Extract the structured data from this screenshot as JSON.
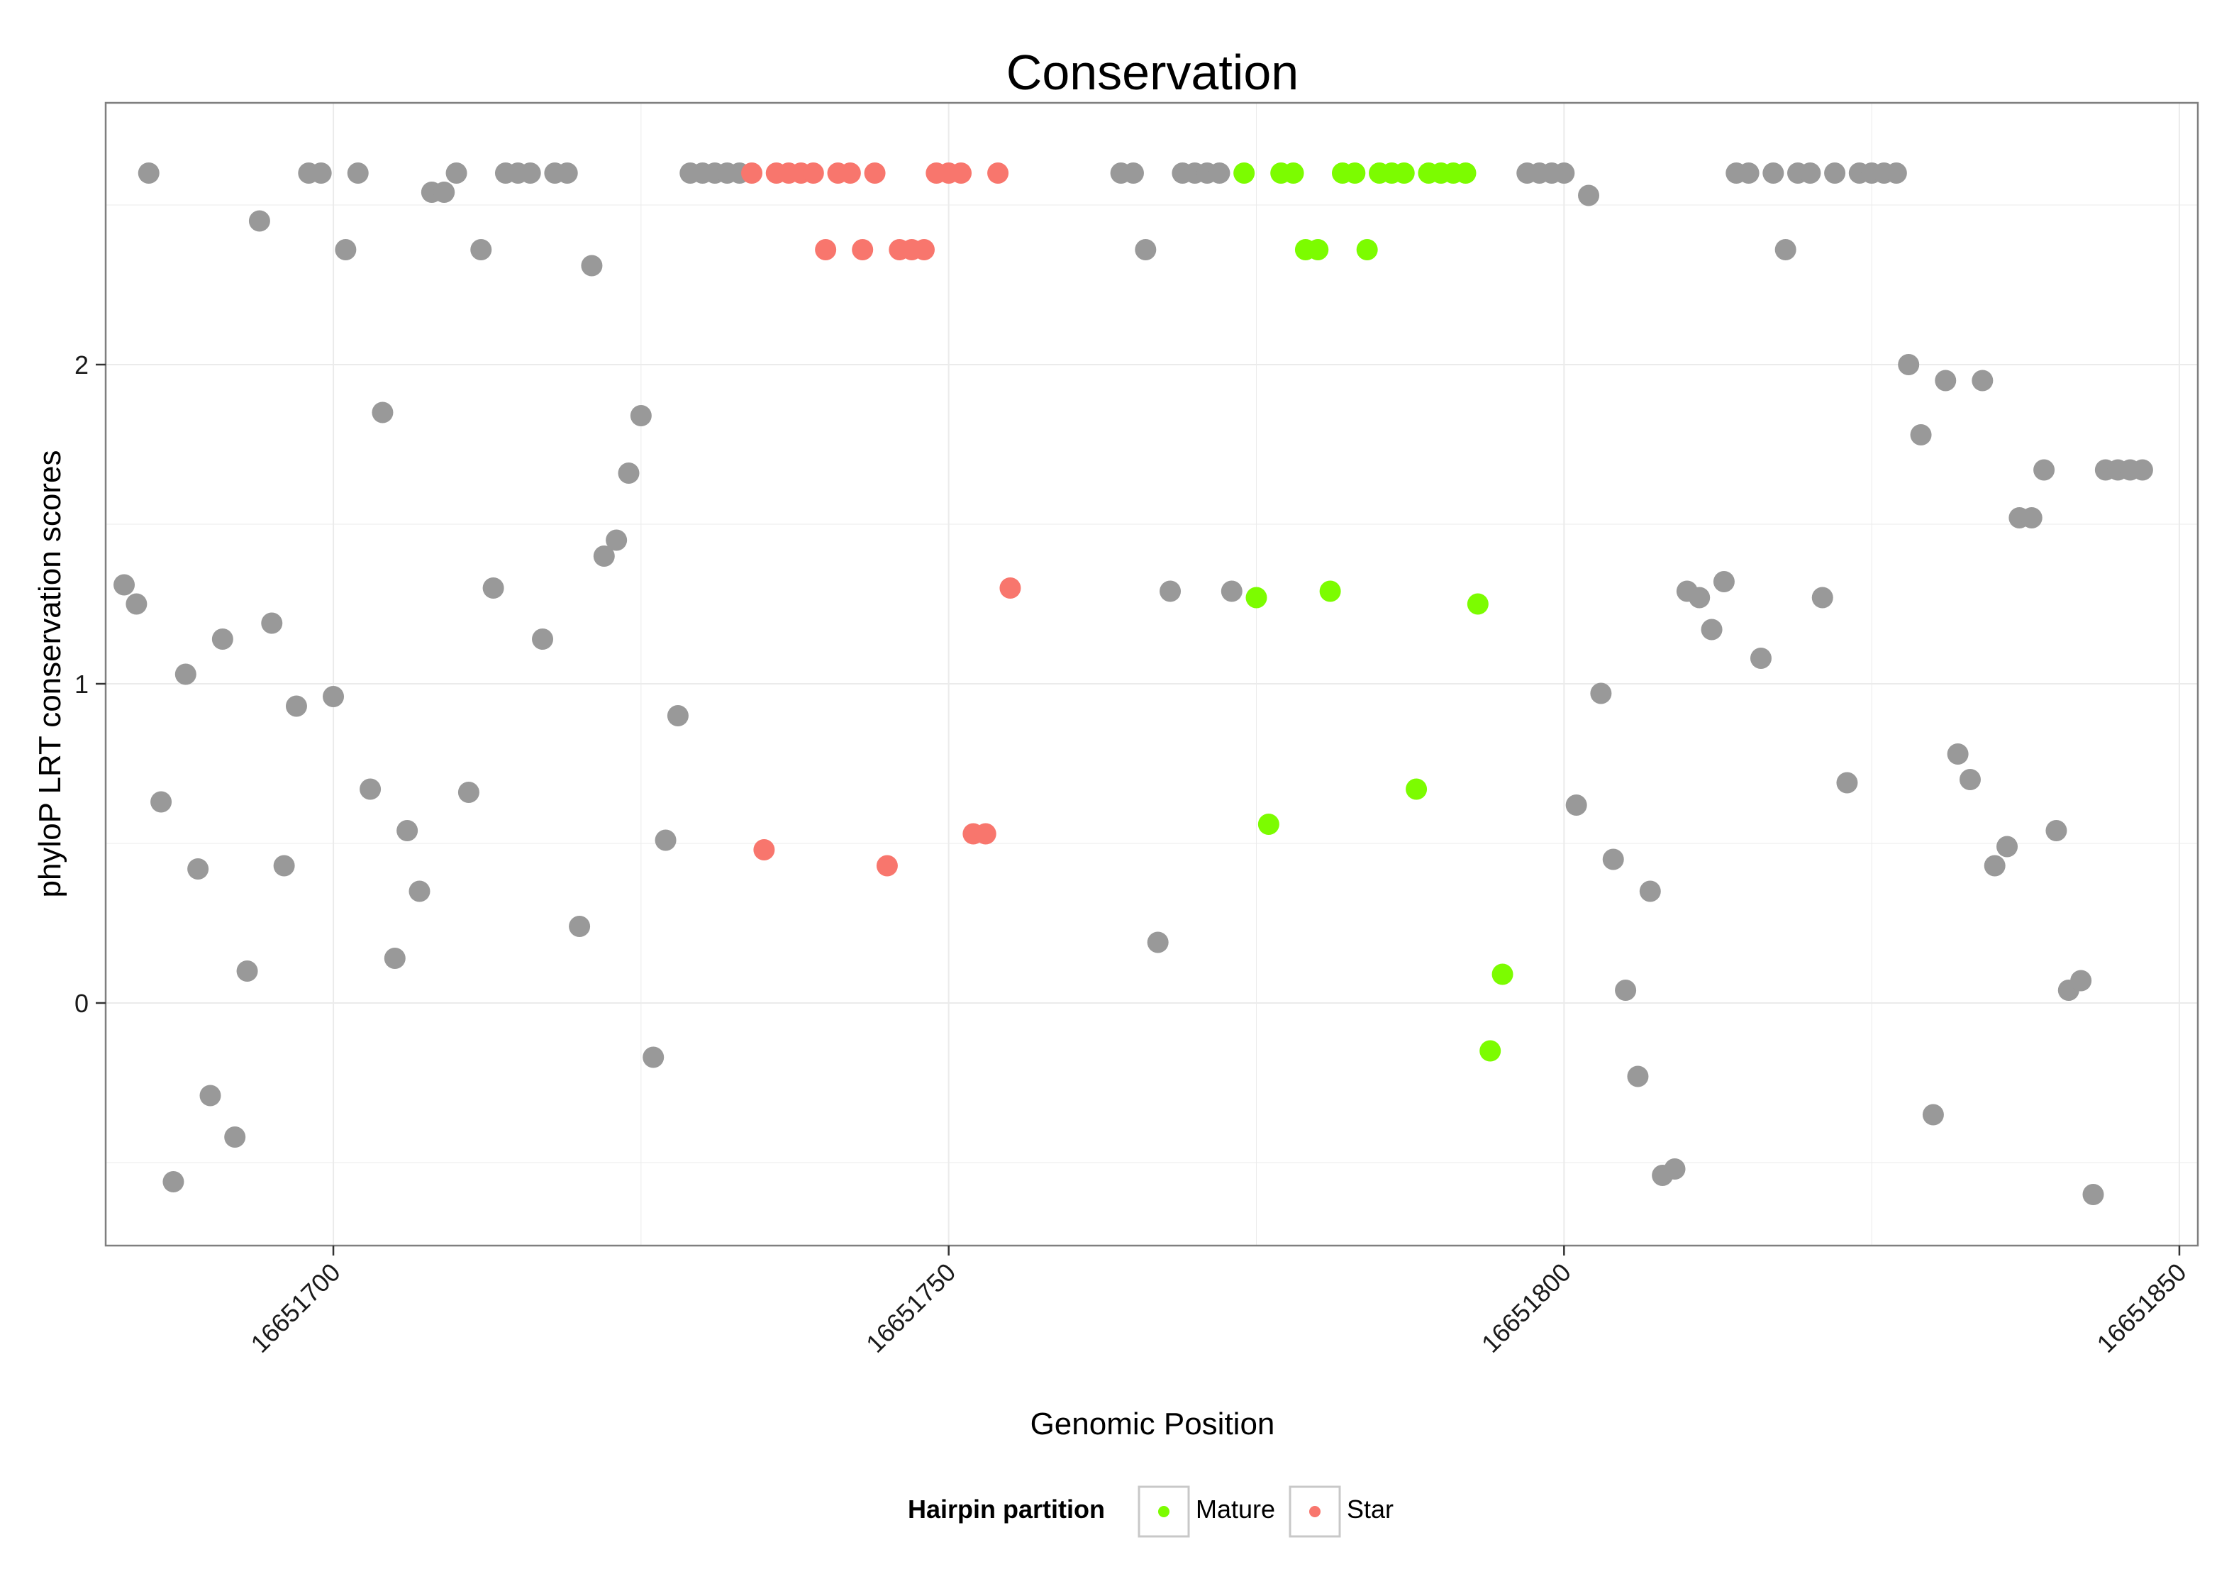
{
  "chart_data": {
    "type": "scatter",
    "title": "Conservation",
    "xlabel": "Genomic Position",
    "ylabel": "phyloP LRT conservation scores",
    "xlim": [
      16651681.5,
      16651851.5
    ],
    "ylim": [
      -0.76,
      2.82
    ],
    "x_ticks": [
      16651700,
      16651750,
      16651800,
      16651850
    ],
    "x_tick_labels": [
      "16651700",
      "16651750",
      "16651800",
      "16651850"
    ],
    "y_ticks": [
      0,
      1,
      2
    ],
    "y_tick_labels": [
      "0",
      "1",
      "2"
    ],
    "grid": true,
    "theme": "bw",
    "legend": {
      "title": "Hairpin partition",
      "position": "bottom",
      "entries": [
        {
          "label": "Mature",
          "color": "#7CFC00"
        },
        {
          "label": "Star",
          "color": "#F8766D"
        }
      ]
    },
    "colors": {
      "other": "#999999",
      "mature": "#7CFC00",
      "star": "#F8766D"
    },
    "series": [
      {
        "group": "other",
        "color": "#999999",
        "points": [
          [
            16651683,
            1.31
          ],
          [
            16651684,
            1.25
          ],
          [
            16651685,
            2.6
          ],
          [
            16651686,
            0.63
          ],
          [
            16651687,
            -0.56
          ],
          [
            16651688,
            1.03
          ],
          [
            16651689,
            0.42
          ],
          [
            16651690,
            -0.29
          ],
          [
            16651691,
            1.14
          ],
          [
            16651692,
            -0.42
          ],
          [
            16651693,
            0.1
          ],
          [
            16651694,
            2.45
          ],
          [
            16651695,
            1.19
          ],
          [
            16651696,
            0.43
          ],
          [
            16651697,
            0.93
          ],
          [
            16651698,
            2.6
          ],
          [
            16651699,
            2.6
          ],
          [
            16651700,
            0.96
          ],
          [
            16651701,
            2.36
          ],
          [
            16651702,
            2.6
          ],
          [
            16651703,
            0.67
          ],
          [
            16651704,
            1.85
          ],
          [
            16651705,
            0.14
          ],
          [
            16651706,
            0.54
          ],
          [
            16651707,
            0.35
          ],
          [
            16651708,
            2.54
          ],
          [
            16651709,
            2.54
          ],
          [
            16651710,
            2.6
          ],
          [
            16651711,
            0.66
          ],
          [
            16651712,
            2.36
          ],
          [
            16651713,
            1.3
          ],
          [
            16651714,
            2.6
          ],
          [
            16651715,
            2.6
          ],
          [
            16651716,
            2.6
          ],
          [
            16651717,
            1.14
          ],
          [
            16651718,
            2.6
          ],
          [
            16651719,
            2.6
          ],
          [
            16651720,
            0.24
          ],
          [
            16651721,
            2.31
          ],
          [
            16651722,
            1.4
          ],
          [
            16651723,
            1.45
          ],
          [
            16651724,
            1.66
          ],
          [
            16651725,
            1.84
          ],
          [
            16651726,
            -0.17
          ],
          [
            16651727,
            0.51
          ],
          [
            16651728,
            0.9
          ],
          [
            16651729,
            2.6
          ],
          [
            16651730,
            2.6
          ],
          [
            16651731,
            2.6
          ],
          [
            16651732,
            2.6
          ],
          [
            16651733,
            2.6
          ],
          [
            16651764,
            2.6
          ],
          [
            16651765,
            2.6
          ],
          [
            16651766,
            2.36
          ],
          [
            16651767,
            0.19
          ],
          [
            16651768,
            1.29
          ],
          [
            16651769,
            2.6
          ],
          [
            16651770,
            2.6
          ],
          [
            16651771,
            2.6
          ],
          [
            16651772,
            2.6
          ],
          [
            16651773,
            1.29
          ],
          [
            16651797,
            2.6
          ],
          [
            16651798,
            2.6
          ],
          [
            16651799,
            2.6
          ],
          [
            16651800,
            2.6
          ],
          [
            16651801,
            0.62
          ],
          [
            16651802,
            2.53
          ],
          [
            16651803,
            0.97
          ],
          [
            16651804,
            0.45
          ],
          [
            16651805,
            0.04
          ],
          [
            16651806,
            -0.23
          ],
          [
            16651807,
            0.35
          ],
          [
            16651808,
            -0.54
          ],
          [
            16651809,
            -0.52
          ],
          [
            16651810,
            1.29
          ],
          [
            16651811,
            1.27
          ],
          [
            16651812,
            1.17
          ],
          [
            16651813,
            1.32
          ],
          [
            16651814,
            2.6
          ],
          [
            16651815,
            2.6
          ],
          [
            16651816,
            1.08
          ],
          [
            16651817,
            2.6
          ],
          [
            16651818,
            2.36
          ],
          [
            16651819,
            2.6
          ],
          [
            16651820,
            2.6
          ],
          [
            16651821,
            1.27
          ],
          [
            16651822,
            2.6
          ],
          [
            16651823,
            0.69
          ],
          [
            16651824,
            2.6
          ],
          [
            16651825,
            2.6
          ],
          [
            16651826,
            2.6
          ],
          [
            16651827,
            2.6
          ],
          [
            16651828,
            2.0
          ],
          [
            16651829,
            1.78
          ],
          [
            16651830,
            -0.35
          ],
          [
            16651831,
            1.95
          ],
          [
            16651832,
            0.78
          ],
          [
            16651833,
            0.7
          ],
          [
            16651834,
            1.95
          ],
          [
            16651835,
            0.43
          ],
          [
            16651836,
            0.49
          ],
          [
            16651837,
            1.52
          ],
          [
            16651838,
            1.52
          ],
          [
            16651839,
            1.67
          ],
          [
            16651840,
            0.54
          ],
          [
            16651841,
            0.04
          ],
          [
            16651842,
            0.07
          ],
          [
            16651843,
            -0.6
          ],
          [
            16651844,
            1.67
          ],
          [
            16651845,
            1.67
          ],
          [
            16651846,
            1.67
          ],
          [
            16651847,
            1.67
          ]
        ]
      },
      {
        "name": "Star",
        "group": "star",
        "color": "#F8766D",
        "points": [
          [
            16651734,
            2.6
          ],
          [
            16651735,
            0.48
          ],
          [
            16651736,
            2.6
          ],
          [
            16651737,
            2.6
          ],
          [
            16651738,
            2.6
          ],
          [
            16651739,
            2.6
          ],
          [
            16651740,
            2.36
          ],
          [
            16651741,
            2.6
          ],
          [
            16651742,
            2.6
          ],
          [
            16651743,
            2.36
          ],
          [
            16651744,
            2.6
          ],
          [
            16651745,
            0.43
          ],
          [
            16651746,
            2.36
          ],
          [
            16651747,
            2.36
          ],
          [
            16651748,
            2.36
          ],
          [
            16651749,
            2.6
          ],
          [
            16651750,
            2.6
          ],
          [
            16651751,
            2.6
          ],
          [
            16651752,
            0.53
          ],
          [
            16651753,
            0.53
          ],
          [
            16651754,
            2.6
          ],
          [
            16651755,
            1.3
          ]
        ]
      },
      {
        "name": "Mature",
        "group": "mature",
        "color": "#7CFC00",
        "points": [
          [
            16651774,
            2.6
          ],
          [
            16651775,
            1.27
          ],
          [
            16651776,
            0.56
          ],
          [
            16651777,
            2.6
          ],
          [
            16651778,
            2.6
          ],
          [
            16651779,
            2.36
          ],
          [
            16651780,
            2.36
          ],
          [
            16651781,
            1.29
          ],
          [
            16651782,
            2.6
          ],
          [
            16651783,
            2.6
          ],
          [
            16651784,
            2.36
          ],
          [
            16651785,
            2.6
          ],
          [
            16651786,
            2.6
          ],
          [
            16651787,
            2.6
          ],
          [
            16651788,
            0.67
          ],
          [
            16651789,
            2.6
          ],
          [
            16651790,
            2.6
          ],
          [
            16651791,
            2.6
          ],
          [
            16651792,
            2.6
          ],
          [
            16651793,
            1.25
          ],
          [
            16651794,
            -0.15
          ],
          [
            16651795,
            0.09
          ]
        ]
      }
    ]
  }
}
